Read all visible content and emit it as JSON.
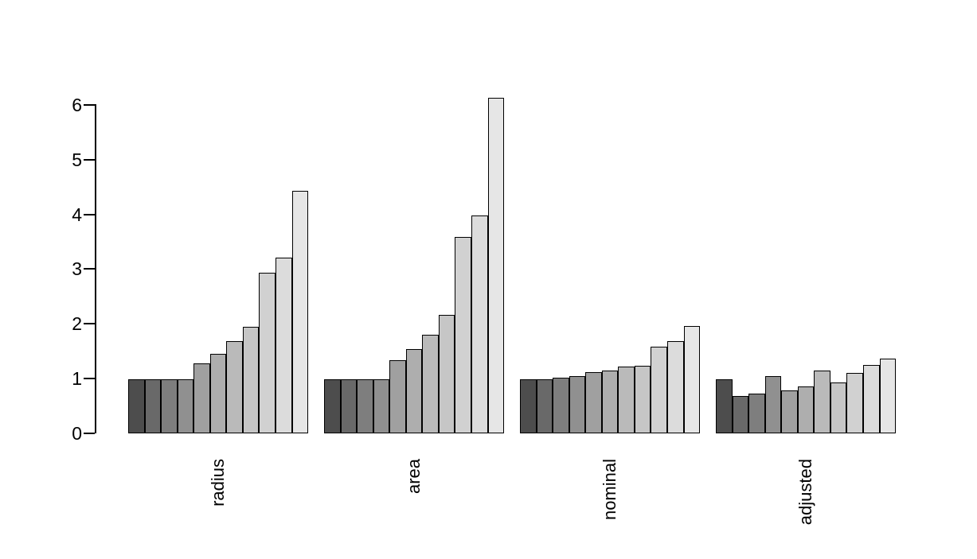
{
  "chart_data": {
    "type": "bar",
    "title": "",
    "xlabel": "",
    "ylabel": "",
    "grid": false,
    "legend": "none",
    "background_color": "#FFFFFF",
    "bar_border_color": "#000000",
    "ylim": [
      0,
      6.2
    ],
    "yticks": [
      0,
      1,
      2,
      3,
      4,
      5,
      6
    ],
    "ytick_labels": [
      "0",
      "1",
      "2",
      "3",
      "4",
      "5",
      "6"
    ],
    "categories": [
      "radius",
      "area",
      "nominal",
      "adjusted"
    ],
    "bars_per_group": 11,
    "bar_colors": [
      "#4D4D4D",
      "#696969",
      "#7E7E7E",
      "#909090",
      "#A0A0A0",
      "#AEAEAE",
      "#BABABA",
      "#C6C6C6",
      "#D1D1D1",
      "#DCDCDC",
      "#E6E6E6"
    ],
    "groups": [
      {
        "label": "radius",
        "values": [
          1.0,
          1.0,
          1.0,
          1.0,
          1.29,
          1.46,
          1.69,
          1.96,
          2.95,
          3.22,
          4.45
        ]
      },
      {
        "label": "area",
        "values": [
          1.0,
          1.0,
          1.0,
          1.0,
          1.35,
          1.55,
          1.81,
          2.18,
          3.6,
          4.0,
          6.15
        ]
      },
      {
        "label": "nominal",
        "values": [
          1.0,
          1.0,
          1.03,
          1.06,
          1.13,
          1.15,
          1.23,
          1.24,
          1.59,
          1.69,
          1.97
        ]
      },
      {
        "label": "adjusted",
        "values": [
          1.0,
          0.69,
          0.73,
          1.05,
          0.79,
          0.86,
          1.16,
          0.94,
          1.12,
          1.26,
          1.37
        ]
      }
    ]
  }
}
